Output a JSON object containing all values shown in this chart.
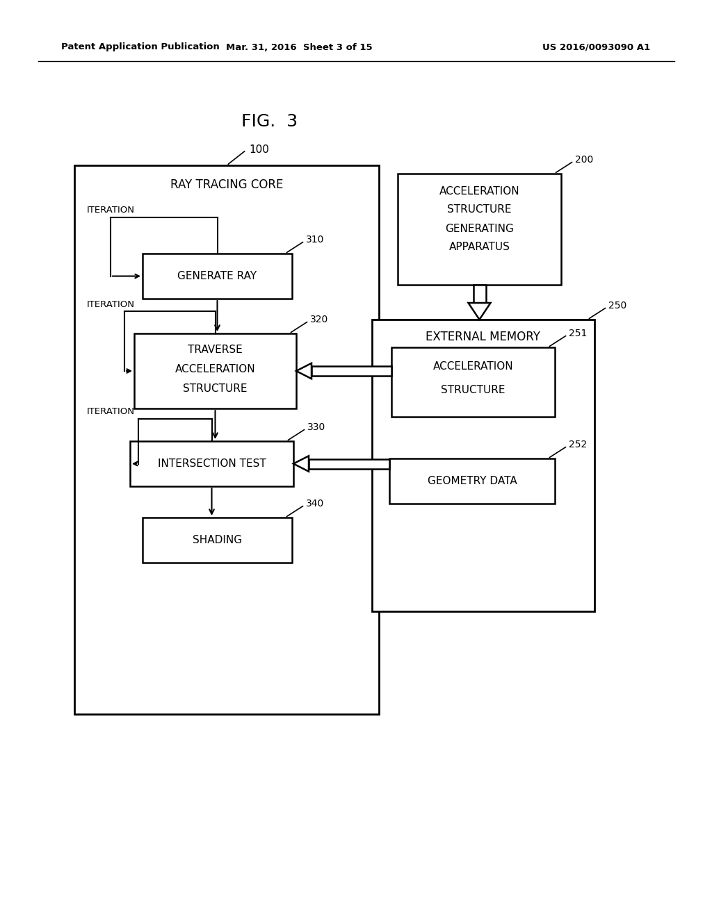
{
  "bg_color": "#ffffff",
  "header_left": "Patent Application Publication",
  "header_mid": "Mar. 31, 2016  Sheet 3 of 15",
  "header_right": "US 2016/0093090 A1",
  "fig_label": "FIG.  3",
  "label_100": "100",
  "title_100": "RAY TRACING CORE",
  "label_200": "200",
  "lines_200": [
    "ACCELERATION",
    "STRUCTURE",
    "GENERATING",
    "APPARATUS"
  ],
  "label_250": "250",
  "title_250": "EXTERNAL MEMORY",
  "label_310": "310",
  "text_310": "GENERATE RAY",
  "label_320": "320",
  "lines_320": [
    "TRAVERSE",
    "ACCELERATION",
    "STRUCTURE"
  ],
  "label_330": "330",
  "text_330": "INTERSECTION TEST",
  "label_340": "340",
  "text_340": "SHADING",
  "label_251": "251",
  "lines_251": [
    "ACCELERATION",
    "STRUCTURE"
  ],
  "label_252": "252",
  "text_252": "GEOMETRY DATA",
  "iter_label": "ITERATION"
}
